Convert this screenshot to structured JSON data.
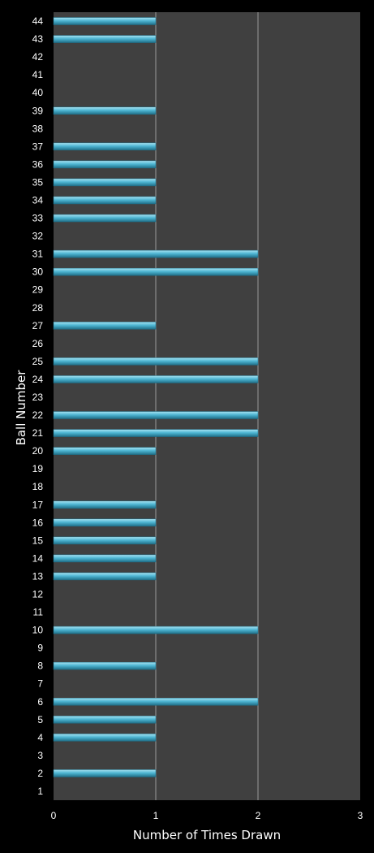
{
  "chart_data": {
    "type": "bar",
    "orientation": "horizontal",
    "xlabel": "Number of Times Drawn",
    "ylabel": "Ball Number",
    "xlim": [
      0,
      3
    ],
    "x_ticks": [
      "0",
      "1",
      "2",
      "3"
    ],
    "grid": "vertical",
    "categories": [
      "1",
      "2",
      "3",
      "4",
      "5",
      "6",
      "7",
      "8",
      "9",
      "10",
      "11",
      "12",
      "13",
      "14",
      "15",
      "16",
      "17",
      "18",
      "19",
      "20",
      "21",
      "22",
      "23",
      "24",
      "25",
      "26",
      "27",
      "28",
      "29",
      "30",
      "31",
      "32",
      "33",
      "34",
      "35",
      "36",
      "37",
      "38",
      "39",
      "40",
      "41",
      "42",
      "43",
      "44"
    ],
    "values": [
      0,
      1,
      0,
      1,
      1,
      2,
      0,
      1,
      0,
      2,
      0,
      0,
      1,
      1,
      1,
      1,
      1,
      0,
      0,
      1,
      2,
      2,
      0,
      2,
      2,
      0,
      1,
      0,
      0,
      2,
      2,
      0,
      1,
      1,
      1,
      1,
      1,
      0,
      1,
      0,
      0,
      0,
      1,
      1
    ],
    "colors": {
      "background": "#000000",
      "plot_area": "#404040",
      "bar": "#4fb6d3",
      "bar_highlight": "#a9e3f2",
      "bar_shadow": "#1f6f88",
      "grid": "#9a9a9a",
      "text": "#ffffff"
    }
  }
}
